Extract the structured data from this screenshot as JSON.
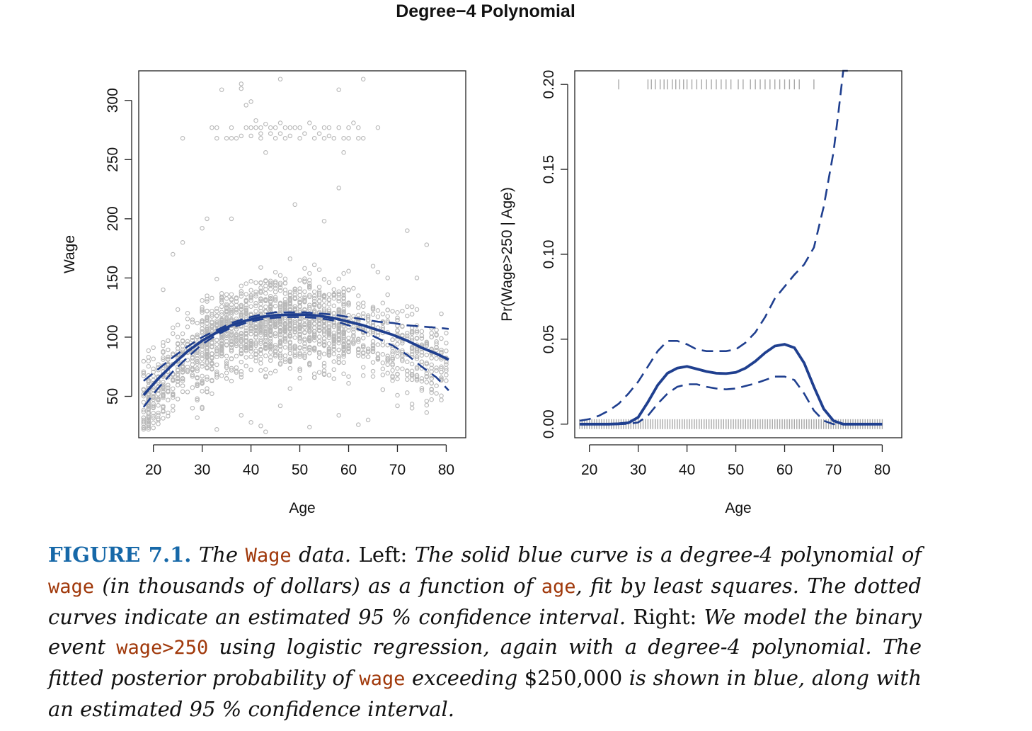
{
  "figure_title": "Degree−4 Polynomial",
  "chart_data": [
    {
      "type": "scatter",
      "panel": "left",
      "title": "",
      "xlabel": "Age",
      "ylabel": "Wage",
      "xlim": [
        17,
        84
      ],
      "ylim": [
        15,
        325
      ],
      "x_ticks": [
        20,
        30,
        40,
        50,
        60,
        70,
        80
      ],
      "y_ticks": [
        50,
        100,
        150,
        200,
        250,
        300
      ],
      "grid": false,
      "legend": "none",
      "point_color": "#b8b8b8",
      "line_color": "#1f3f8f",
      "points_high_wage": [
        [
          26,
          268
        ],
        [
          32,
          277
        ],
        [
          33,
          268
        ],
        [
          33,
          277
        ],
        [
          34,
          309
        ],
        [
          35,
          268
        ],
        [
          36,
          277
        ],
        [
          36,
          268
        ],
        [
          37,
          268
        ],
        [
          38,
          270
        ],
        [
          38,
          310
        ],
        [
          38,
          314
        ],
        [
          39,
          277
        ],
        [
          39,
          296
        ],
        [
          40,
          277
        ],
        [
          40,
          299
        ],
        [
          40,
          270
        ],
        [
          41,
          277
        ],
        [
          41,
          283
        ],
        [
          42,
          277
        ],
        [
          42,
          268
        ],
        [
          42,
          272
        ],
        [
          43,
          256
        ],
        [
          43,
          280
        ],
        [
          44,
          277
        ],
        [
          44,
          272
        ],
        [
          45,
          268
        ],
        [
          45,
          277
        ],
        [
          46,
          318
        ],
        [
          46,
          281
        ],
        [
          46,
          272
        ],
        [
          47,
          277
        ],
        [
          47,
          268
        ],
        [
          48,
          277
        ],
        [
          48,
          270
        ],
        [
          49,
          277
        ],
        [
          50,
          277
        ],
        [
          50,
          268
        ],
        [
          51,
          272
        ],
        [
          52,
          281
        ],
        [
          53,
          277
        ],
        [
          53,
          268
        ],
        [
          54,
          272
        ],
        [
          55,
          277
        ],
        [
          55,
          268
        ],
        [
          56,
          270
        ],
        [
          56,
          277
        ],
        [
          57,
          268
        ],
        [
          58,
          277
        ],
        [
          58,
          309
        ],
        [
          59,
          256
        ],
        [
          59,
          268
        ],
        [
          60,
          277
        ],
        [
          60,
          268
        ],
        [
          61,
          281
        ],
        [
          62,
          268
        ],
        [
          62,
          277
        ],
        [
          63,
          318
        ],
        [
          63,
          268
        ],
        [
          66,
          277
        ]
      ],
      "points_outliers": [
        [
          18,
          30
        ],
        [
          18,
          32
        ],
        [
          19,
          28
        ],
        [
          21,
          30
        ],
        [
          22,
          140
        ],
        [
          23,
          36
        ],
        [
          24,
          170
        ],
        [
          26,
          180
        ],
        [
          28,
          40
        ],
        [
          29,
          32
        ],
        [
          30,
          192
        ],
        [
          31,
          200
        ],
        [
          33,
          22
        ],
        [
          36,
          200
        ],
        [
          38,
          34
        ],
        [
          40,
          28
        ],
        [
          42,
          25
        ],
        [
          43,
          20
        ],
        [
          46,
          42
        ],
        [
          49,
          212
        ],
        [
          52,
          24
        ],
        [
          58,
          226
        ],
        [
          58,
          34
        ],
        [
          62,
          26
        ],
        [
          65,
          160
        ],
        [
          66,
          155
        ],
        [
          68,
          150
        ],
        [
          70,
          42
        ],
        [
          72,
          190
        ],
        [
          73,
          40
        ],
        [
          74,
          150
        ],
        [
          75,
          55
        ],
        [
          76,
          178
        ],
        [
          77,
          100
        ],
        [
          78,
          85
        ],
        [
          80,
          95
        ],
        [
          80,
          82
        ],
        [
          64,
          30
        ],
        [
          55,
          198
        ]
      ],
      "fit": {
        "x": [
          18,
          21,
          24,
          27,
          30,
          33,
          36,
          39,
          42,
          45,
          48,
          51,
          54,
          57,
          60,
          63,
          66,
          69,
          72,
          75,
          78,
          80.5
        ],
        "y": [
          51,
          65,
          77,
          88,
          97,
          104,
          110,
          114,
          117,
          118.5,
          119,
          119,
          118,
          116,
          113,
          110,
          106,
          102,
          97,
          91,
          86,
          81
        ]
      },
      "ci_upper": {
        "x": [
          18,
          21,
          24,
          27,
          30,
          33,
          36,
          39,
          42,
          45,
          48,
          51,
          54,
          57,
          60,
          63,
          66,
          69,
          72,
          75,
          78,
          80.5
        ],
        "y": [
          63,
          73,
          83,
          92,
          100,
          106,
          112,
          116,
          119,
          121,
          121,
          121,
          120,
          119,
          117,
          115,
          113,
          112,
          110,
          109,
          108,
          107
        ]
      },
      "ci_lower": {
        "x": [
          18,
          21,
          24,
          27,
          30,
          33,
          36,
          39,
          42,
          45,
          48,
          51,
          54,
          57,
          60,
          63,
          66,
          69,
          72,
          75,
          78,
          80.5
        ],
        "y": [
          41,
          57,
          71,
          83,
          94,
          102,
          108,
          112,
          115,
          116.5,
          117,
          117,
          116,
          114,
          110,
          105,
          99,
          93,
          85,
          75,
          66,
          55
        ]
      }
    },
    {
      "type": "line",
      "panel": "right",
      "title": "",
      "xlabel": "Age",
      "ylabel": "Pr(Wage>250 | Age)",
      "xlim": [
        17,
        84
      ],
      "ylim": [
        -0.008,
        0.208
      ],
      "x_ticks": [
        20,
        30,
        40,
        50,
        60,
        70,
        80
      ],
      "y_ticks": [
        0.0,
        0.05,
        0.1,
        0.15,
        0.2
      ],
      "y_tick_labels": [
        "0.00",
        "0.05",
        "0.10",
        "0.15",
        "0.20"
      ],
      "grid": false,
      "legend": "none",
      "line_color": "#1f3f8f",
      "rug_color": "#a8a8a8",
      "rug_top_level": 0.2,
      "rug_top_ages": [
        26,
        32,
        32.7,
        33.5,
        34.5,
        35.3,
        36,
        37,
        37.7,
        38.5,
        39.3,
        40,
        41,
        42,
        43,
        44,
        45,
        46,
        47,
        48,
        49,
        50.5,
        51.5,
        53,
        54,
        55,
        56,
        57,
        58,
        59,
        60,
        61,
        62,
        63,
        66
      ],
      "rug_bottom_level": 0.0,
      "rug_bottom_range": [
        18,
        80
      ],
      "fit": {
        "x": [
          18,
          20,
          22,
          24,
          26,
          28,
          30,
          32,
          34,
          36,
          38,
          40,
          42,
          44,
          46,
          48,
          50,
          52,
          54,
          56,
          58,
          60,
          62,
          64,
          66,
          68,
          70,
          72,
          74,
          76,
          78,
          80
        ],
        "y": [
          0.0,
          0.0,
          0.0,
          0.0,
          0.0002,
          0.0008,
          0.004,
          0.013,
          0.023,
          0.03,
          0.033,
          0.034,
          0.0325,
          0.031,
          0.03,
          0.0298,
          0.0305,
          0.033,
          0.037,
          0.042,
          0.046,
          0.047,
          0.045,
          0.036,
          0.022,
          0.009,
          0.002,
          0.0,
          0.0,
          0.0,
          0.0,
          0.0
        ]
      },
      "ci_upper": {
        "x": [
          18,
          20,
          22,
          24,
          26,
          28,
          30,
          32,
          34,
          36,
          38,
          40,
          42,
          44,
          46,
          48,
          50,
          52,
          54,
          56,
          58,
          60,
          62,
          64,
          66,
          68,
          70,
          71,
          72,
          73
        ],
        "y": [
          0.002,
          0.003,
          0.005,
          0.008,
          0.012,
          0.018,
          0.025,
          0.034,
          0.043,
          0.049,
          0.049,
          0.047,
          0.044,
          0.043,
          0.043,
          0.043,
          0.044,
          0.048,
          0.054,
          0.063,
          0.074,
          0.081,
          0.088,
          0.094,
          0.104,
          0.128,
          0.16,
          0.183,
          0.21,
          0.24
        ]
      },
      "ci_lower": {
        "x": [
          18,
          22,
          26,
          28,
          30,
          32,
          34,
          36,
          38,
          40,
          42,
          44,
          46,
          48,
          50,
          52,
          54,
          56,
          58,
          60,
          62,
          64,
          66,
          68,
          70,
          72
        ],
        "y": [
          0.0,
          0.0,
          0.0,
          0.0002,
          0.001,
          0.005,
          0.012,
          0.018,
          0.022,
          0.0235,
          0.0235,
          0.022,
          0.021,
          0.0205,
          0.021,
          0.0225,
          0.024,
          0.026,
          0.028,
          0.028,
          0.026,
          0.018,
          0.008,
          0.002,
          0.0,
          0.0
        ]
      }
    }
  ],
  "caption": {
    "label": "FIGURE 7.1.",
    "s1": "The",
    "c1": "Wage",
    "s2": "data.",
    "s3": "Left:",
    "s4": "The solid blue curve is a degree-4 polynomial of",
    "c2": "wage",
    "s5": "(in thousands of dollars) as a function of",
    "c3": "age",
    "s6": ", fit by least squares. The dotted curves indicate an estimated 95 % confidence interval.",
    "s7": "Right:",
    "s8": "We model the binary event",
    "c4": "wage>250",
    "s9": "using logistic regression, again with a degree-4 polynomial. The fitted posterior probability of",
    "c5": "wage",
    "s10": "exceeding",
    "s11": "$250,000",
    "s12": "is shown in blue, along with an estimated 95 % confidence interval."
  }
}
